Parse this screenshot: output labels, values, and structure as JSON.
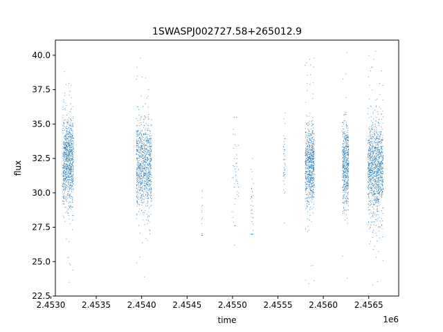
{
  "chart_data": {
    "type": "scatter",
    "title": "1SWASPJ002727.58+265012.9",
    "xlabel": "time",
    "ylabel": "flux",
    "x_offset_label": "1e6",
    "xlim": [
      2.45305,
      2.45683
    ],
    "ylim": [
      22.5,
      41.1
    ],
    "x_ticks": [
      2.453,
      2.4535,
      2.454,
      2.4545,
      2.455,
      2.4555,
      2.456,
      2.4565
    ],
    "x_tick_labels": [
      "2.4530",
      "2.4535",
      "2.4540",
      "2.4545",
      "2.4550",
      "2.4555",
      "2.4560",
      "2.4565"
    ],
    "y_ticks": [
      22.5,
      25.0,
      27.5,
      30.0,
      32.5,
      35.0,
      37.5,
      40.0
    ],
    "y_tick_labels": [
      "22.5",
      "25.0",
      "27.5",
      "30.0",
      "32.5",
      "35.0",
      "37.5",
      "40.0"
    ],
    "grid": false,
    "point_color": "#1f77b4",
    "series": [
      {
        "values": "dense photometric time series rendered as clusters",
        "clusters": [
          {
            "x_start": 2.45313,
            "x_end": 2.45325,
            "y_mean": 32.3,
            "y_spread": 1.6,
            "y_min": 23.5,
            "y_max": 38.8,
            "density": 900
          },
          {
            "x_start": 2.45394,
            "x_end": 2.45411,
            "y_mean": 32.0,
            "y_spread": 1.7,
            "y_min": 23.9,
            "y_max": 39.8,
            "density": 900
          },
          {
            "x_start": 2.45466,
            "x_end": 2.45467,
            "y_mean": 28.5,
            "y_spread": 1.0,
            "y_min": 26.9,
            "y_max": 30.2,
            "density": 12
          },
          {
            "x_start": 2.455,
            "x_end": 2.45507,
            "y_mean": 31.0,
            "y_spread": 2.0,
            "y_min": 26.2,
            "y_max": 35.5,
            "density": 40
          },
          {
            "x_start": 2.4552,
            "x_end": 2.45523,
            "y_mean": 29.0,
            "y_spread": 1.5,
            "y_min": 27.0,
            "y_max": 32.5,
            "density": 30
          },
          {
            "x_start": 2.45556,
            "x_end": 2.45558,
            "y_mean": 32.5,
            "y_spread": 1.2,
            "y_min": 27.8,
            "y_max": 35.8,
            "density": 40
          },
          {
            "x_start": 2.4558,
            "x_end": 2.4559,
            "y_mean": 32.0,
            "y_spread": 1.5,
            "y_min": 23.4,
            "y_max": 39.8,
            "density": 700
          },
          {
            "x_start": 2.45621,
            "x_end": 2.45628,
            "y_mean": 32.0,
            "y_spread": 1.5,
            "y_min": 23.8,
            "y_max": 40.2,
            "density": 500
          },
          {
            "x_start": 2.45649,
            "x_end": 2.45666,
            "y_mean": 31.8,
            "y_spread": 1.7,
            "y_min": 23.3,
            "y_max": 40.3,
            "density": 1100
          }
        ]
      }
    ]
  }
}
